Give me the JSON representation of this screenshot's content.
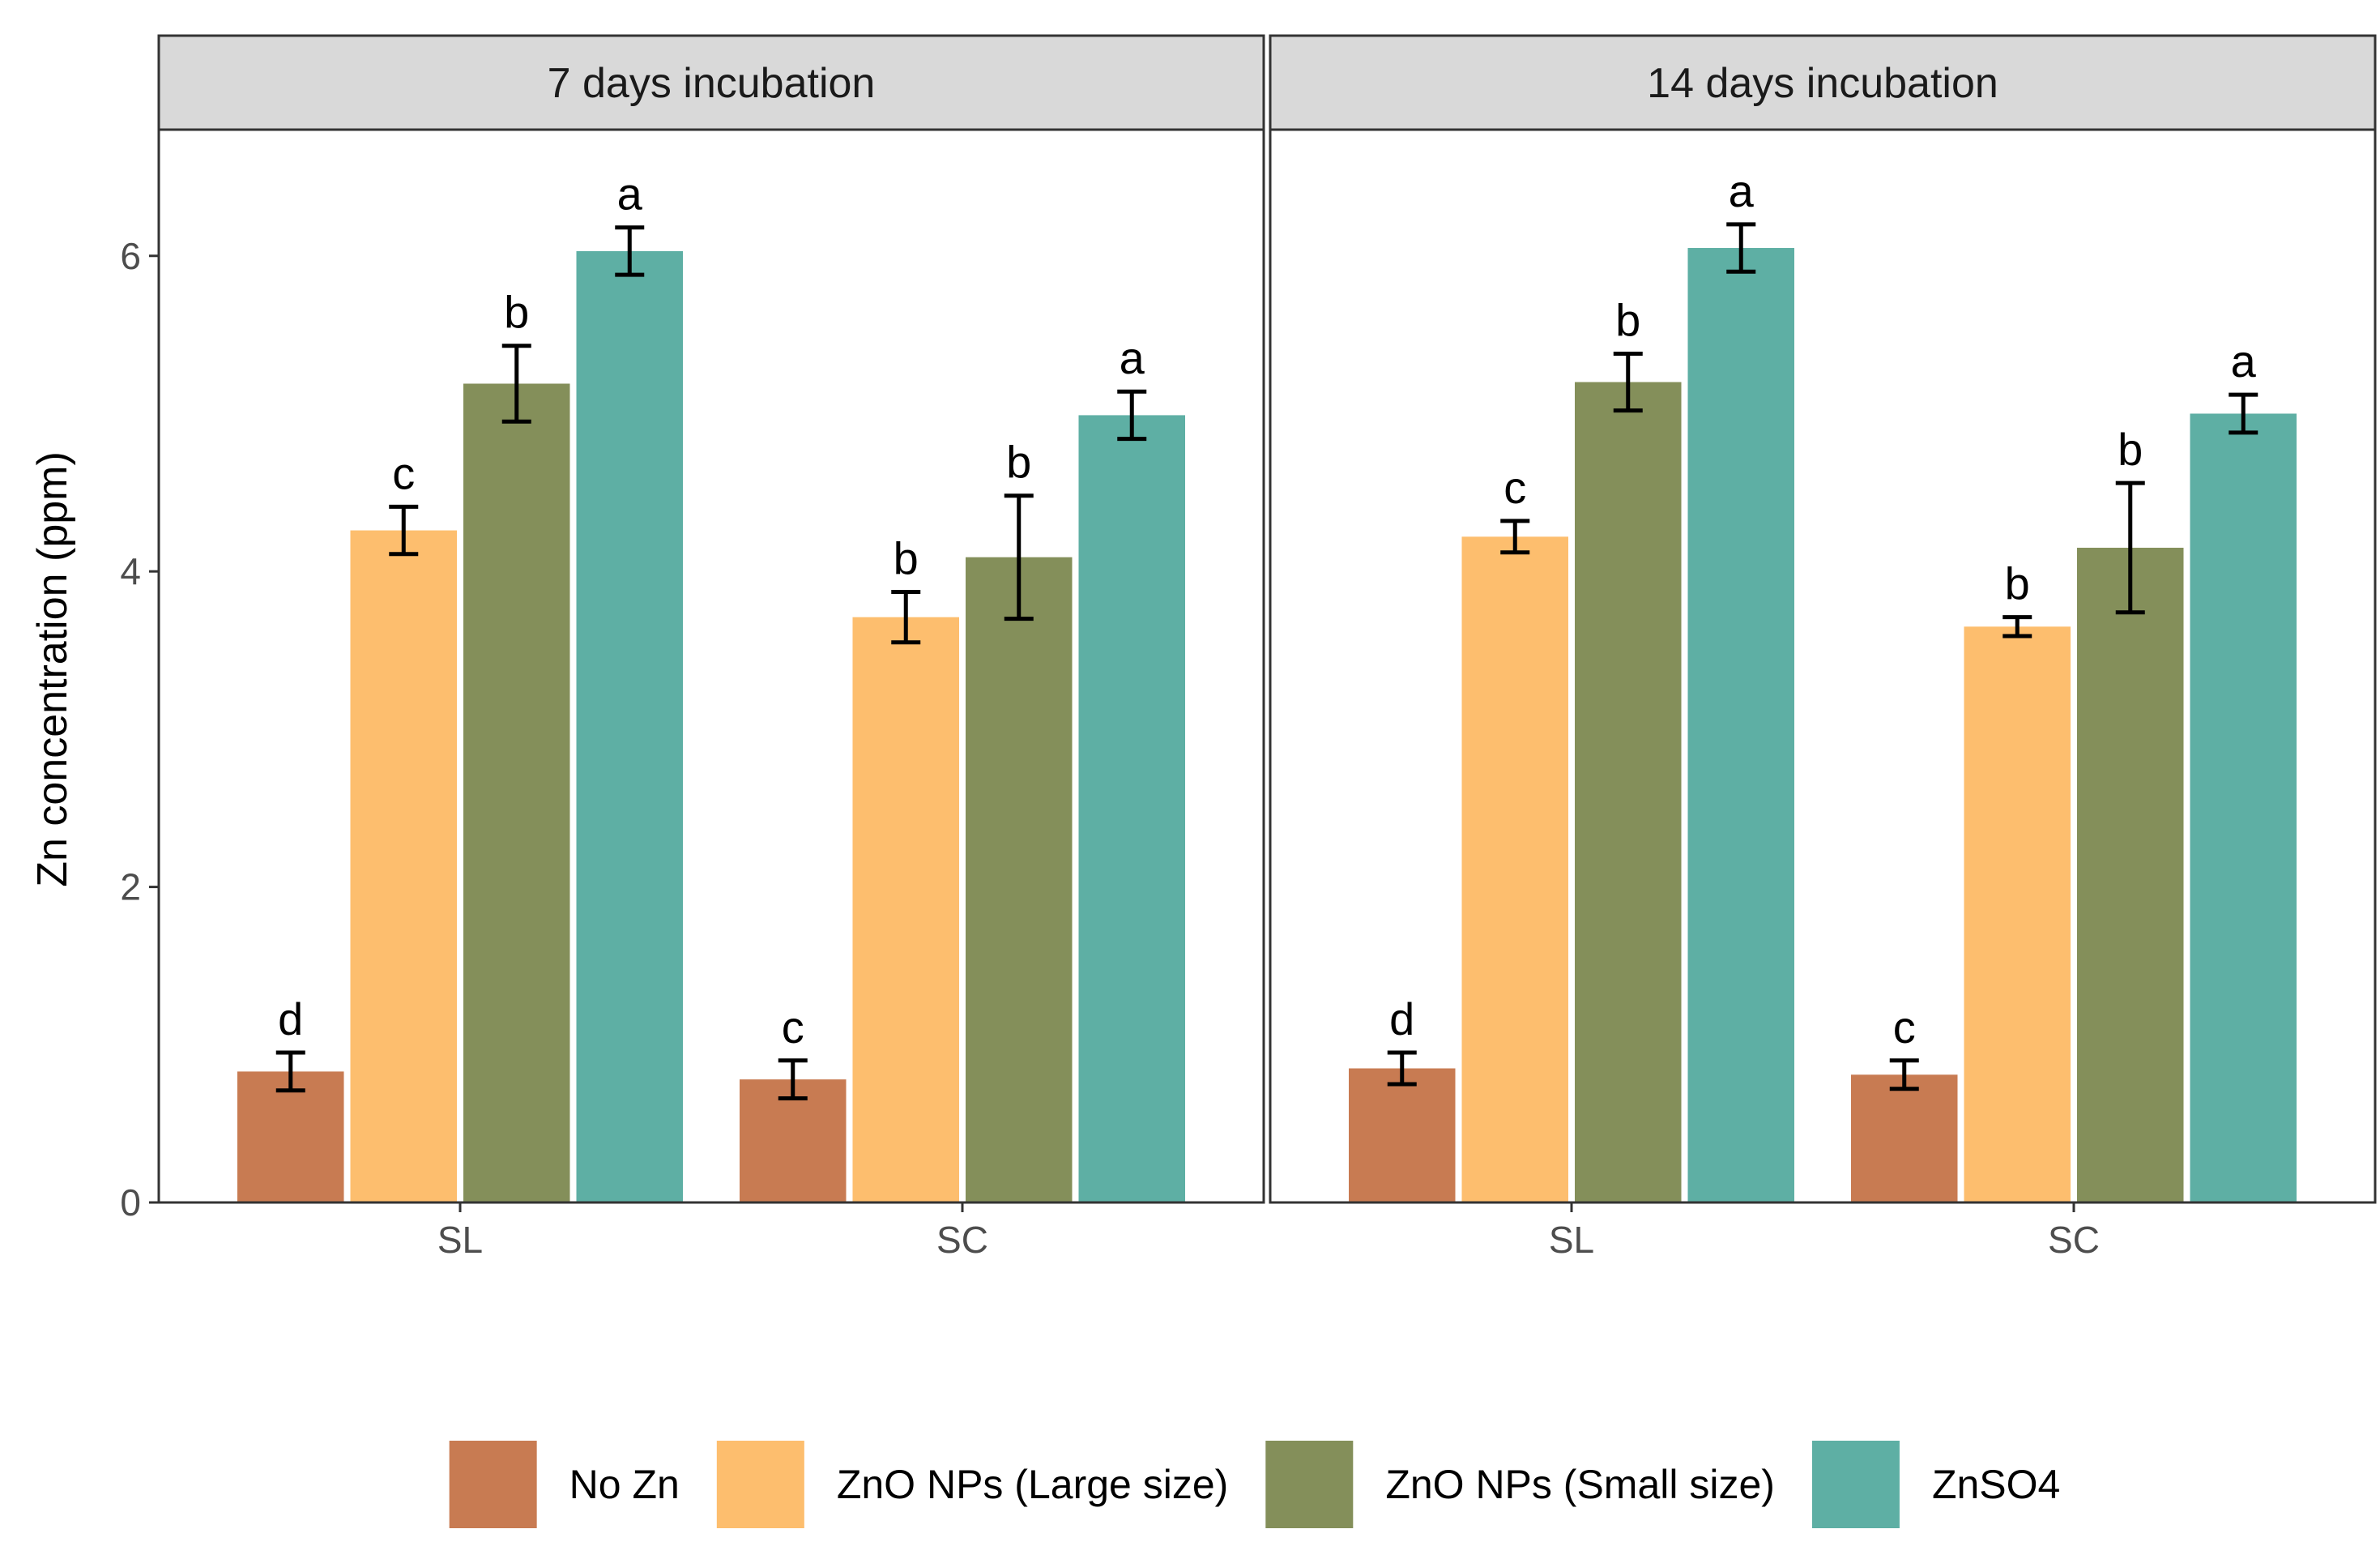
{
  "chart_data": {
    "type": "bar",
    "ylabel": "Zn concentration (ppm)",
    "xlabel": "",
    "ylim": [
      0,
      6.8
    ],
    "yticks": [
      0,
      2,
      4,
      6
    ],
    "legend_position": "bottom",
    "colors": {
      "No Zn": "#c87b52",
      "ZnO NPs (Large size)": "#fdbe6e",
      "ZnO NPs (Small size)": "#848f5a",
      "ZnSO4": "#5eafa4"
    },
    "legend": [
      "No Zn",
      "ZnO NPs (Large size)",
      "ZnO NPs (Small size)",
      "ZnSO4"
    ],
    "panels": [
      {
        "title": "7 days incubation",
        "categories": [
          "SL",
          "SC"
        ],
        "series": [
          {
            "name": "No Zn",
            "values": [
              0.83,
              0.78
            ],
            "errors": [
              0.12,
              0.12
            ],
            "letters": [
              "d",
              "c"
            ]
          },
          {
            "name": "ZnO NPs (Large size)",
            "values": [
              4.26,
              3.71
            ],
            "errors": [
              0.15,
              0.16
            ],
            "letters": [
              "c",
              "b"
            ]
          },
          {
            "name": "ZnO NPs (Small size)",
            "values": [
              5.19,
              4.09
            ],
            "errors": [
              0.24,
              0.39
            ],
            "letters": [
              "b",
              "b"
            ]
          },
          {
            "name": "ZnSO4",
            "values": [
              6.03,
              4.99
            ],
            "errors": [
              0.15,
              0.15
            ],
            "letters": [
              "a",
              "a"
            ]
          }
        ]
      },
      {
        "title": "14 days incubation",
        "categories": [
          "SL",
          "SC"
        ],
        "series": [
          {
            "name": "No Zn",
            "values": [
              0.85,
              0.81
            ],
            "errors": [
              0.1,
              0.09
            ],
            "letters": [
              "d",
              "c"
            ]
          },
          {
            "name": "ZnO NPs (Large size)",
            "values": [
              4.22,
              3.65
            ],
            "errors": [
              0.1,
              0.06
            ],
            "letters": [
              "c",
              "b"
            ]
          },
          {
            "name": "ZnO NPs (Small size)",
            "values": [
              5.2,
              4.15
            ],
            "errors": [
              0.18,
              0.41
            ],
            "letters": [
              "b",
              "b"
            ]
          },
          {
            "name": "ZnSO4",
            "values": [
              6.05,
              5.0
            ],
            "errors": [
              0.15,
              0.12
            ],
            "letters": [
              "a",
              "a"
            ]
          }
        ]
      }
    ]
  }
}
